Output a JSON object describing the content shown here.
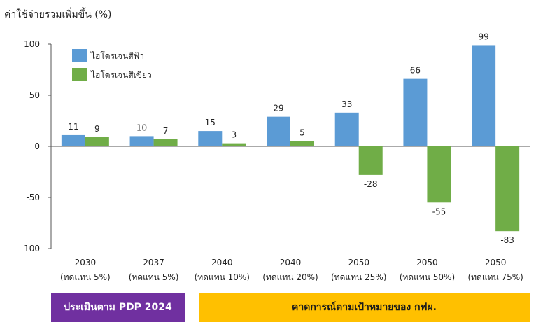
{
  "chart_data": {
    "type": "bar",
    "ylabel": "ค่าใช้จ่ายรวมเพิ่มขึ้น (%)",
    "ylim": [
      -100,
      100
    ],
    "yticks": [
      100,
      50,
      0,
      -50,
      -100
    ],
    "categories": [
      {
        "year": "2030",
        "note": "(ทดแทน 5%)"
      },
      {
        "year": "2037",
        "note": "(ทดแทน 5%)"
      },
      {
        "year": "2040",
        "note": "(ทดแทน 10%)"
      },
      {
        "year": "2040",
        "note": "(ทดแทน 20%)"
      },
      {
        "year": "2050",
        "note": "(ทดแทน 25%)"
      },
      {
        "year": "2050",
        "note": "(ทดแทน 50%)"
      },
      {
        "year": "2050",
        "note": "(ทดแทน 75%)"
      }
    ],
    "series": [
      {
        "name": "ไฮโดรเจนสีฟ้า",
        "color": "#5b9bd5",
        "values": [
          11,
          10,
          15,
          29,
          33,
          66,
          99
        ]
      },
      {
        "name": "ไฮโดรเจนสีเขียว",
        "color": "#70ad47",
        "values": [
          9,
          7,
          3,
          5,
          -28,
          -55,
          -83
        ]
      }
    ],
    "legend": "top-left",
    "grid": false
  },
  "banners": {
    "left": "ประเมินตาม PDP 2024",
    "right": "คาดการณ์ตามเป้าหมายของ กฟผ."
  }
}
